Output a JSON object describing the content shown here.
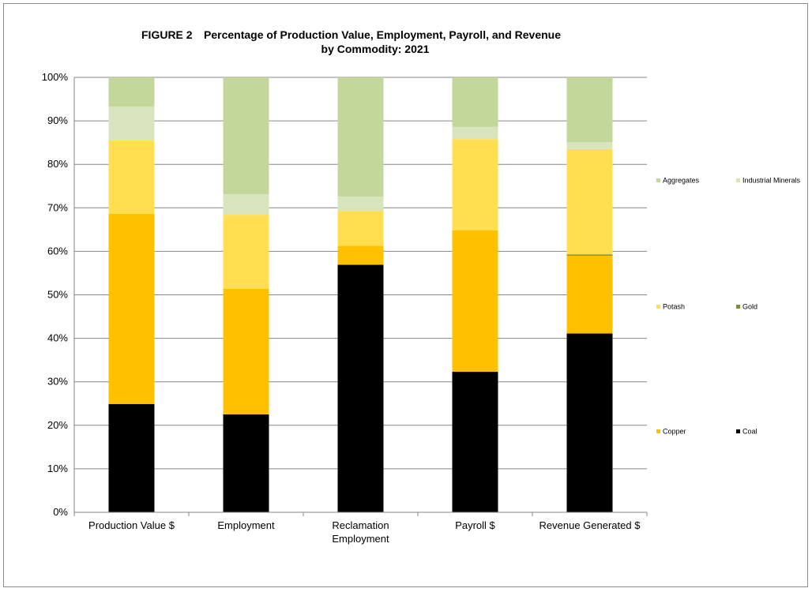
{
  "chart_data": {
    "type": "bar",
    "stacked": true,
    "percent": true,
    "title_prefix": "FIGURE 2",
    "title_line1": "Percentage of Production Value, Employment, Payroll, and Revenue",
    "title_line2": "by Commodity: 2021",
    "categories": [
      [
        "Production Value $"
      ],
      [
        "Employment"
      ],
      [
        "Reclamation",
        "Employment"
      ],
      [
        "Payroll $"
      ],
      [
        "Revenue Generated $"
      ]
    ],
    "ylim": [
      0,
      100
    ],
    "y_ticks": [
      "0%",
      "10%",
      "20%",
      "30%",
      "40%",
      "50%",
      "60%",
      "70%",
      "80%",
      "90%",
      "100%"
    ],
    "grid": true,
    "legend_position": "right",
    "series": [
      {
        "name": "Coal",
        "color": "#000000",
        "values": [
          24.9,
          22.5,
          56.9,
          32.3,
          41.1
        ]
      },
      {
        "name": "Copper",
        "color": "#ffc000",
        "values": [
          43.7,
          28.9,
          4.4,
          32.5,
          17.9
        ]
      },
      {
        "name": "Gold",
        "color": "#76923c",
        "values": [
          0.0,
          0.0,
          0.0,
          0.0,
          0.3
        ]
      },
      {
        "name": "Potash",
        "color": "#ffdf4f",
        "values": [
          16.9,
          17.0,
          8.0,
          21.0,
          24.2
        ]
      },
      {
        "name": "Industrial Minerals",
        "color": "#d8e4bc",
        "values": [
          7.8,
          4.7,
          3.3,
          2.8,
          1.6
        ]
      },
      {
        "name": "Aggregates",
        "color": "#c4d79b",
        "values": [
          6.7,
          26.9,
          27.4,
          11.4,
          14.9
        ]
      }
    ],
    "legend_order": [
      [
        "Aggregates",
        "Industrial Minerals"
      ],
      [
        "Potash",
        "Gold"
      ],
      [
        "Copper",
        "Coal"
      ]
    ]
  }
}
